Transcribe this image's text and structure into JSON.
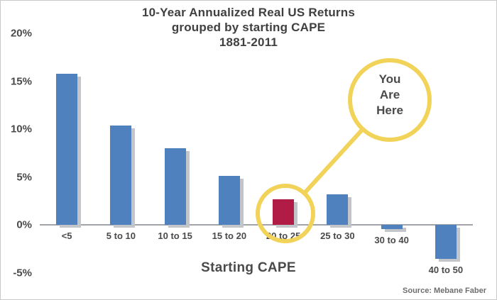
{
  "chart": {
    "title_lines": [
      "10-Year Annualized Real US Returns",
      "grouped by starting CAPE",
      "1881-2011"
    ],
    "xlabel": "Starting CAPE",
    "source": "Source: Mebane Faber",
    "annotation": {
      "text_lines": [
        "You",
        "Are",
        "Here"
      ],
      "target_category": "20 to 25"
    }
  },
  "chart_data": {
    "type": "bar",
    "title": "10-Year Annualized Real US Returns grouped by starting CAPE 1881-2011",
    "categories": [
      "<5",
      "5 to 10",
      "10 to 15",
      "15 to 20",
      "20 to 25",
      "25 to 30",
      "30 to 40",
      "40 to 50"
    ],
    "values": [
      15.8,
      10.4,
      8.0,
      5.1,
      2.7,
      3.2,
      -0.4,
      -3.5
    ],
    "highlight_index": 4,
    "xlabel": "Starting CAPE",
    "ylabel": "",
    "ylim": [
      -5,
      20
    ],
    "yticks": [
      20,
      15,
      10,
      5,
      0,
      -5
    ],
    "ytick_suffix": "%",
    "grid": false,
    "legend": "none",
    "colors": {
      "bar": "#4e81bd",
      "bar_highlight": "#b01c45",
      "bar_shadow": "#c2c6ca",
      "annotation_ring": "#f2d35a",
      "axis_line": "#a0a4a8",
      "text": "#4a4a4a"
    }
  }
}
